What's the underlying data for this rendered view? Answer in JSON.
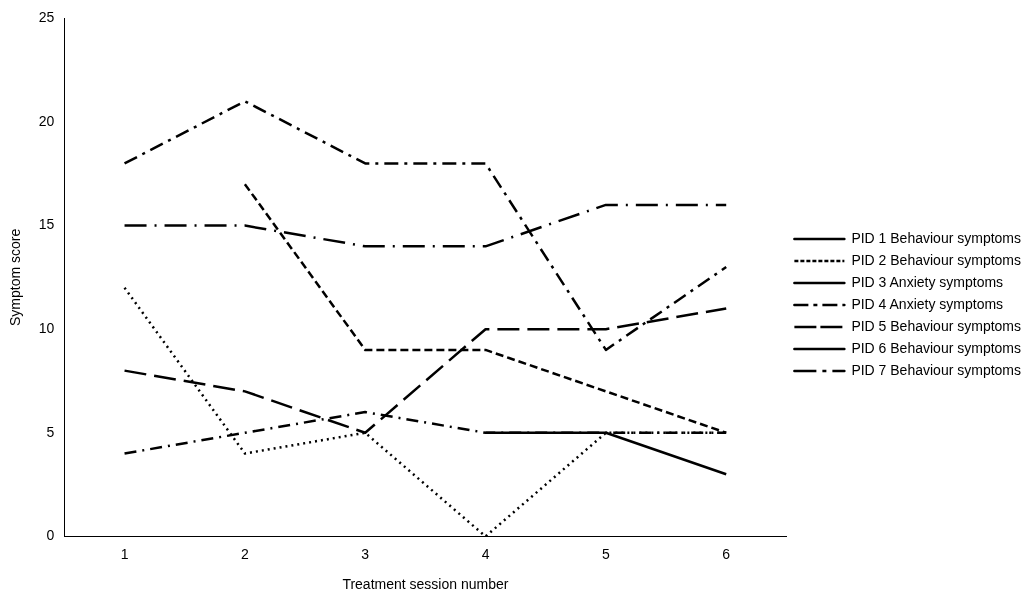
{
  "chart_data": {
    "type": "line",
    "xlabel": "Treatment session number",
    "ylabel": "Symptom score",
    "categories": [
      "1",
      "2",
      "3",
      "4",
      "5",
      "6"
    ],
    "ylim": [
      0,
      25
    ],
    "yticks": [
      0,
      5,
      10,
      15,
      20,
      25
    ],
    "grid": false,
    "legend": "right",
    "marker": "none",
    "series": [
      {
        "name": "PID 1 Behaviour symptoms",
        "color": "#000000",
        "line_style": "solid",
        "values": [
          null,
          null,
          null,
          5,
          5,
          3
        ]
      },
      {
        "name": "PID 2 Behaviour symptoms",
        "color": "#000000",
        "line_style": "dotted",
        "values": [
          12,
          4,
          5,
          0,
          5,
          5
        ]
      },
      {
        "name": "PID 3 Anxiety symptoms",
        "color": "#000000",
        "line_style": "dashed",
        "values": [
          null,
          17,
          9,
          9,
          7,
          5
        ]
      },
      {
        "name": "PID 4 Anxiety symptoms",
        "color": "#000000",
        "line_style": "dashed",
        "values": [
          18,
          21,
          18,
          18,
          9,
          13
        ]
      },
      {
        "name": "PID 5 Behaviour symptoms",
        "color": "#000000",
        "line_style": "dashed",
        "values": [
          4,
          5,
          6,
          5,
          5,
          5
        ]
      },
      {
        "name": "PID 6 Behaviour symptoms",
        "color": "#000000",
        "line_style": "dashed",
        "values": [
          8,
          7,
          5,
          10,
          10,
          11
        ]
      },
      {
        "name": "PID 7 Behaviour symptoms",
        "color": "#000000",
        "line_style": "dashed",
        "values": [
          15,
          15,
          14,
          14,
          16,
          16
        ]
      }
    ]
  }
}
